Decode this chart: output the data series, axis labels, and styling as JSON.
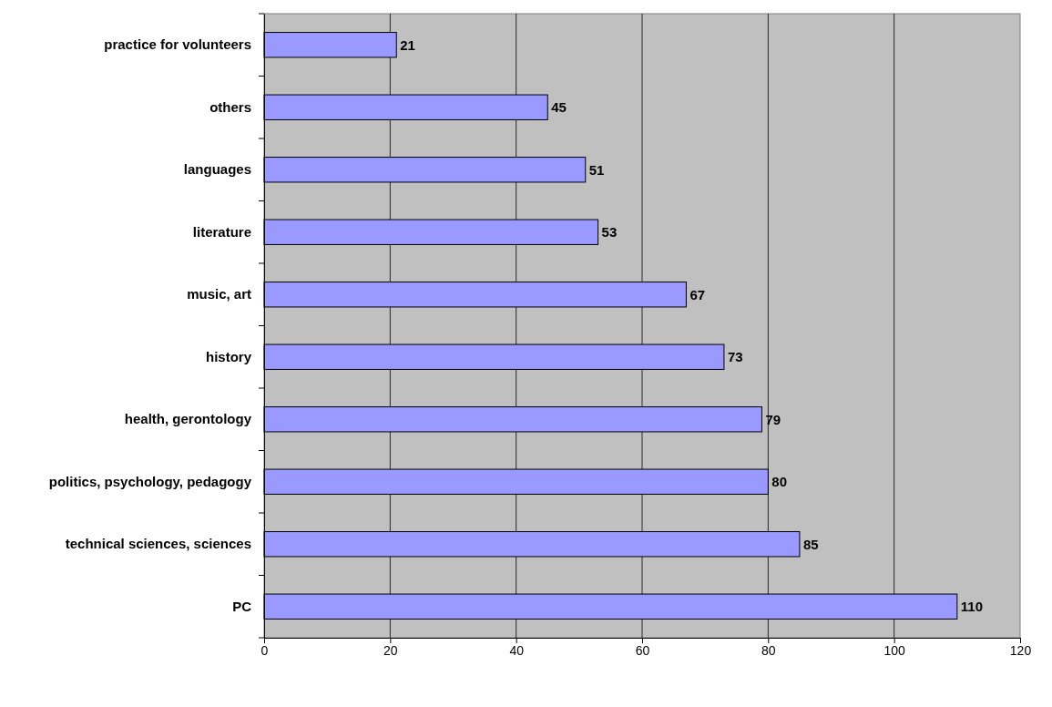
{
  "chart_data": {
    "type": "bar",
    "orientation": "horizontal",
    "categories": [
      "practice for volunteers",
      "others",
      "languages",
      "literature",
      "music, art",
      "history",
      "health, gerontology",
      "politics, psychology, pedagogy",
      "technical sciences, sciences",
      "PC"
    ],
    "values": [
      21,
      45,
      51,
      53,
      67,
      73,
      79,
      80,
      85,
      110
    ],
    "color": "#9999ff",
    "xlim": [
      0,
      120
    ],
    "xticks": [
      0,
      20,
      40,
      60,
      80,
      100,
      120
    ],
    "grid": "x",
    "data_labels": true
  }
}
